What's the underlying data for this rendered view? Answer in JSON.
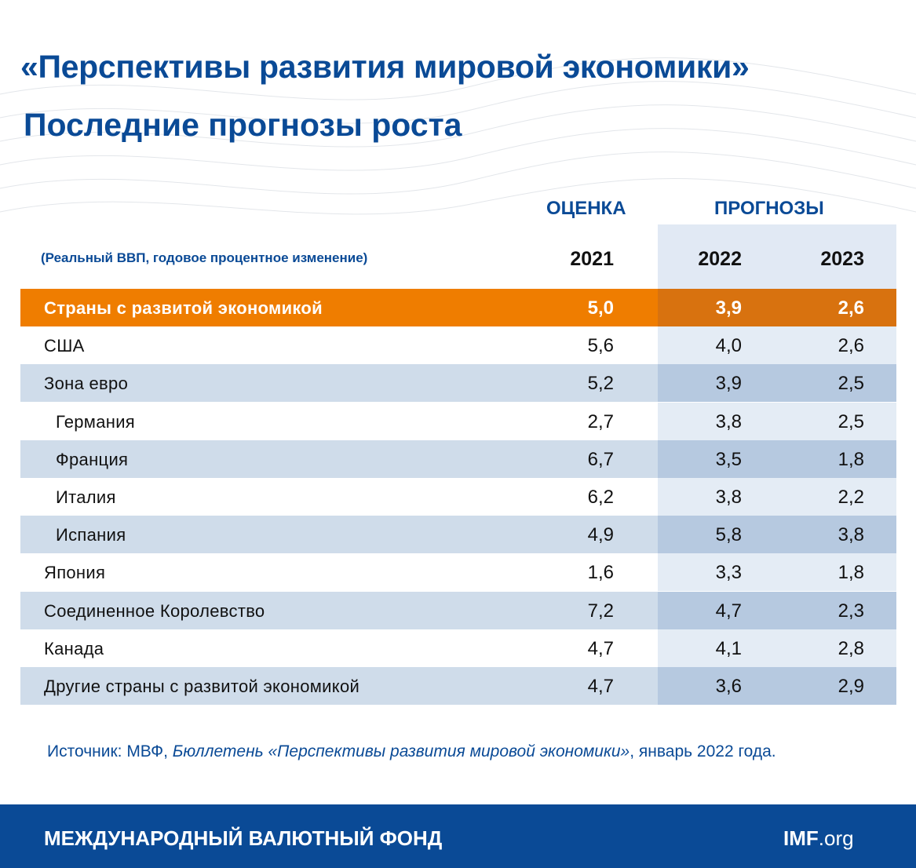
{
  "header": {
    "title": "«Перспективы развития мировой экономики»",
    "subtitle": "Последние прогнозы роста"
  },
  "table": {
    "group_labels": [
      "ОЦЕНКА",
      "ПРОГНОЗЫ"
    ],
    "note": "(Реальный ВВП, годовое процентное изменение)",
    "columns": [
      "2021",
      "2022",
      "2023"
    ],
    "total": {
      "label": "Страны с развитой экономикой",
      "values": [
        "5,0",
        "3,9",
        "2,6"
      ]
    },
    "rows": [
      {
        "label": "США",
        "values": [
          "5,6",
          "4,0",
          "2,6"
        ]
      },
      {
        "label": "Зона евро",
        "values": [
          "5,2",
          "3,9",
          "2,5"
        ],
        "members": [
          {
            "label": "Германия",
            "values": [
              "2,7",
              "3,8",
              "2,5"
            ]
          },
          {
            "label": "Франция",
            "values": [
              "6,7",
              "3,5",
              "1,8"
            ]
          },
          {
            "label": "Италия",
            "values": [
              "6,2",
              "3,8",
              "2,2"
            ]
          },
          {
            "label": "Испания",
            "values": [
              "4,9",
              "5,8",
              "3,8"
            ]
          }
        ]
      },
      {
        "label": "Япония",
        "values": [
          "1,6",
          "3,3",
          "1,8"
        ]
      },
      {
        "label": "Соединенное Королевство",
        "values": [
          "7,2",
          "4,7",
          "2,3"
        ]
      },
      {
        "label": "Канада",
        "values": [
          "4,7",
          "4,1",
          "2,8"
        ]
      },
      {
        "label": "Другие страны с развитой экономикой",
        "values": [
          "4,7",
          "3,6",
          "2,9"
        ]
      }
    ]
  },
  "source": {
    "prefix": "Источник: МВФ, ",
    "title": "Бюллетень «Перспективы развития мировой экономики»",
    "suffix": ", январь 2022 года."
  },
  "footer": {
    "organization": "МЕЖДУНАРОДНЫЙ ВАЛЮТНЫЙ ФОНД",
    "site_bold": "IMF",
    "site_rest": ".org"
  }
}
